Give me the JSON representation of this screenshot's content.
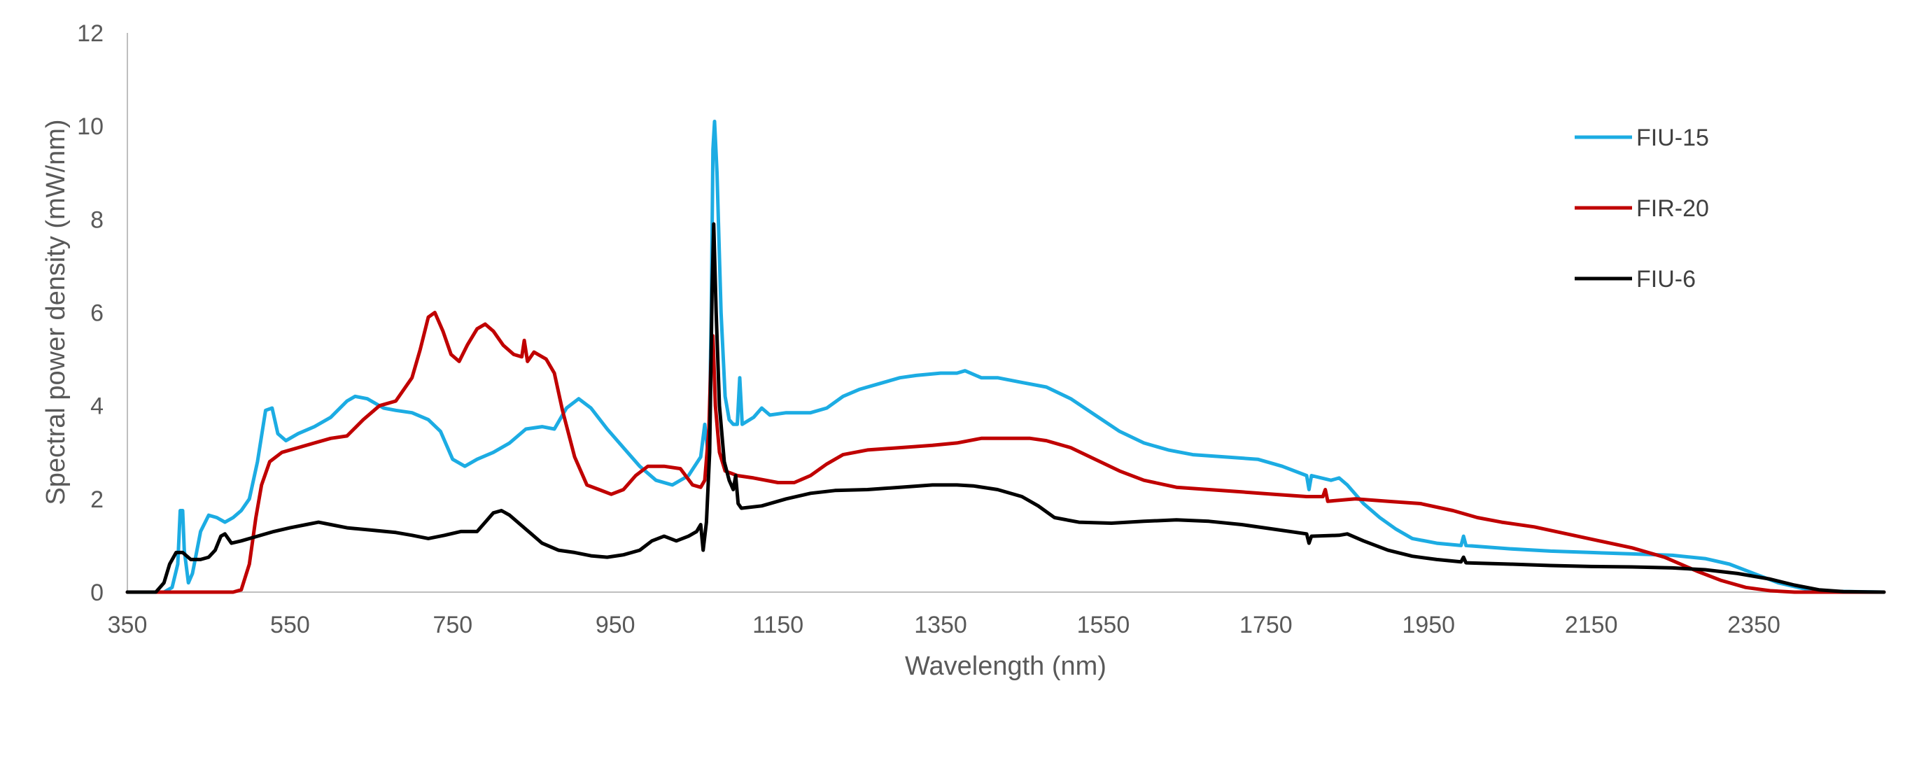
{
  "chart_data": {
    "type": "line",
    "title": "",
    "xlabel": "Wavelength (nm)",
    "ylabel": "Spectral power density (mW/nm)",
    "xlim": [
      350,
      2510
    ],
    "ylim": [
      0,
      12
    ],
    "xticks": [
      350,
      550,
      750,
      950,
      1150,
      1350,
      1550,
      1750,
      1950,
      2150,
      2350
    ],
    "yticks": [
      0,
      2,
      4,
      6,
      8,
      10,
      12
    ],
    "grid": false,
    "legend_position": "top-right",
    "series": [
      {
        "name": "FIU-15",
        "color": "#1CACE3",
        "points": [
          [
            350,
            0
          ],
          [
            395,
            0
          ],
          [
            405,
            0.1
          ],
          [
            412,
            0.6
          ],
          [
            415,
            1.75
          ],
          [
            418,
            1.75
          ],
          [
            420,
            0.9
          ],
          [
            425,
            0.2
          ],
          [
            430,
            0.4
          ],
          [
            440,
            1.3
          ],
          [
            450,
            1.65
          ],
          [
            460,
            1.6
          ],
          [
            470,
            1.5
          ],
          [
            480,
            1.6
          ],
          [
            490,
            1.75
          ],
          [
            500,
            2.0
          ],
          [
            510,
            2.8
          ],
          [
            520,
            3.9
          ],
          [
            528,
            3.95
          ],
          [
            535,
            3.4
          ],
          [
            545,
            3.25
          ],
          [
            560,
            3.4
          ],
          [
            580,
            3.55
          ],
          [
            600,
            3.75
          ],
          [
            620,
            4.1
          ],
          [
            630,
            4.2
          ],
          [
            645,
            4.15
          ],
          [
            665,
            3.95
          ],
          [
            680,
            3.9
          ],
          [
            700,
            3.85
          ],
          [
            720,
            3.7
          ],
          [
            735,
            3.45
          ],
          [
            750,
            2.85
          ],
          [
            765,
            2.7
          ],
          [
            780,
            2.85
          ],
          [
            800,
            3.0
          ],
          [
            820,
            3.2
          ],
          [
            840,
            3.5
          ],
          [
            860,
            3.55
          ],
          [
            875,
            3.5
          ],
          [
            890,
            3.95
          ],
          [
            905,
            4.15
          ],
          [
            920,
            3.95
          ],
          [
            940,
            3.5
          ],
          [
            960,
            3.1
          ],
          [
            980,
            2.7
          ],
          [
            1000,
            2.4
          ],
          [
            1020,
            2.3
          ],
          [
            1040,
            2.5
          ],
          [
            1055,
            2.9
          ],
          [
            1060,
            3.6
          ],
          [
            1065,
            2.8
          ],
          [
            1068,
            6.0
          ],
          [
            1070,
            9.5
          ],
          [
            1072,
            10.1
          ],
          [
            1075,
            9.0
          ],
          [
            1080,
            6.0
          ],
          [
            1085,
            4.2
          ],
          [
            1090,
            3.7
          ],
          [
            1095,
            3.6
          ],
          [
            1100,
            3.6
          ],
          [
            1103,
            4.6
          ],
          [
            1106,
            3.6
          ],
          [
            1120,
            3.75
          ],
          [
            1130,
            3.95
          ],
          [
            1140,
            3.8
          ],
          [
            1160,
            3.85
          ],
          [
            1190,
            3.85
          ],
          [
            1210,
            3.95
          ],
          [
            1230,
            4.2
          ],
          [
            1250,
            4.35
          ],
          [
            1270,
            4.45
          ],
          [
            1300,
            4.6
          ],
          [
            1320,
            4.65
          ],
          [
            1350,
            4.7
          ],
          [
            1370,
            4.7
          ],
          [
            1380,
            4.75
          ],
          [
            1400,
            4.6
          ],
          [
            1420,
            4.6
          ],
          [
            1450,
            4.5
          ],
          [
            1480,
            4.4
          ],
          [
            1510,
            4.15
          ],
          [
            1540,
            3.8
          ],
          [
            1570,
            3.45
          ],
          [
            1600,
            3.2
          ],
          [
            1630,
            3.05
          ],
          [
            1660,
            2.95
          ],
          [
            1700,
            2.9
          ],
          [
            1740,
            2.85
          ],
          [
            1770,
            2.7
          ],
          [
            1800,
            2.5
          ],
          [
            1803,
            2.2
          ],
          [
            1806,
            2.5
          ],
          [
            1830,
            2.4
          ],
          [
            1840,
            2.45
          ],
          [
            1850,
            2.3
          ],
          [
            1870,
            1.9
          ],
          [
            1890,
            1.6
          ],
          [
            1910,
            1.35
          ],
          [
            1930,
            1.15
          ],
          [
            1960,
            1.05
          ],
          [
            1990,
            1.0
          ],
          [
            1993,
            1.2
          ],
          [
            1996,
            1.0
          ],
          [
            2050,
            0.93
          ],
          [
            2100,
            0.88
          ],
          [
            2150,
            0.85
          ],
          [
            2200,
            0.82
          ],
          [
            2250,
            0.79
          ],
          [
            2290,
            0.72
          ],
          [
            2320,
            0.6
          ],
          [
            2350,
            0.4
          ],
          [
            2380,
            0.2
          ],
          [
            2410,
            0.08
          ],
          [
            2440,
            0.02
          ],
          [
            2510,
            0
          ]
        ]
      },
      {
        "name": "FIR-20",
        "color": "#C00000",
        "points": [
          [
            350,
            0
          ],
          [
            480,
            0
          ],
          [
            490,
            0.05
          ],
          [
            500,
            0.6
          ],
          [
            508,
            1.6
          ],
          [
            515,
            2.3
          ],
          [
            525,
            2.8
          ],
          [
            540,
            3.0
          ],
          [
            560,
            3.1
          ],
          [
            580,
            3.2
          ],
          [
            600,
            3.3
          ],
          [
            620,
            3.35
          ],
          [
            640,
            3.7
          ],
          [
            660,
            4.0
          ],
          [
            680,
            4.1
          ],
          [
            700,
            4.6
          ],
          [
            710,
            5.2
          ],
          [
            720,
            5.9
          ],
          [
            728,
            6.0
          ],
          [
            738,
            5.6
          ],
          [
            748,
            5.1
          ],
          [
            758,
            4.95
          ],
          [
            768,
            5.3
          ],
          [
            780,
            5.65
          ],
          [
            790,
            5.75
          ],
          [
            800,
            5.6
          ],
          [
            812,
            5.3
          ],
          [
            825,
            5.1
          ],
          [
            835,
            5.05
          ],
          [
            838,
            5.4
          ],
          [
            842,
            4.95
          ],
          [
            850,
            5.15
          ],
          [
            865,
            5.0
          ],
          [
            875,
            4.7
          ],
          [
            885,
            3.9
          ],
          [
            900,
            2.9
          ],
          [
            915,
            2.3
          ],
          [
            930,
            2.2
          ],
          [
            945,
            2.1
          ],
          [
            960,
            2.2
          ],
          [
            975,
            2.5
          ],
          [
            990,
            2.7
          ],
          [
            1010,
            2.7
          ],
          [
            1030,
            2.65
          ],
          [
            1045,
            2.3
          ],
          [
            1055,
            2.25
          ],
          [
            1060,
            2.4
          ],
          [
            1065,
            3.5
          ],
          [
            1068,
            5.2
          ],
          [
            1070,
            5.5
          ],
          [
            1073,
            4.0
          ],
          [
            1078,
            3.0
          ],
          [
            1085,
            2.6
          ],
          [
            1100,
            2.5
          ],
          [
            1120,
            2.45
          ],
          [
            1150,
            2.35
          ],
          [
            1170,
            2.35
          ],
          [
            1190,
            2.5
          ],
          [
            1210,
            2.75
          ],
          [
            1230,
            2.95
          ],
          [
            1260,
            3.05
          ],
          [
            1300,
            3.1
          ],
          [
            1340,
            3.15
          ],
          [
            1370,
            3.2
          ],
          [
            1400,
            3.3
          ],
          [
            1430,
            3.3
          ],
          [
            1460,
            3.3
          ],
          [
            1480,
            3.25
          ],
          [
            1510,
            3.1
          ],
          [
            1540,
            2.85
          ],
          [
            1570,
            2.6
          ],
          [
            1600,
            2.4
          ],
          [
            1640,
            2.25
          ],
          [
            1680,
            2.2
          ],
          [
            1720,
            2.15
          ],
          [
            1760,
            2.1
          ],
          [
            1800,
            2.05
          ],
          [
            1820,
            2.05
          ],
          [
            1823,
            2.2
          ],
          [
            1826,
            1.95
          ],
          [
            1860,
            2.0
          ],
          [
            1900,
            1.95
          ],
          [
            1940,
            1.9
          ],
          [
            1980,
            1.75
          ],
          [
            2010,
            1.6
          ],
          [
            2040,
            1.5
          ],
          [
            2080,
            1.4
          ],
          [
            2120,
            1.25
          ],
          [
            2160,
            1.1
          ],
          [
            2200,
            0.95
          ],
          [
            2240,
            0.75
          ],
          [
            2280,
            0.45
          ],
          [
            2310,
            0.25
          ],
          [
            2340,
            0.1
          ],
          [
            2370,
            0.03
          ],
          [
            2400,
            0
          ],
          [
            2510,
            0
          ]
        ]
      },
      {
        "name": "FIU-6",
        "color": "#000000",
        "points": [
          [
            350,
            0
          ],
          [
            385,
            0
          ],
          [
            395,
            0.2
          ],
          [
            402,
            0.6
          ],
          [
            410,
            0.85
          ],
          [
            418,
            0.85
          ],
          [
            428,
            0.7
          ],
          [
            440,
            0.7
          ],
          [
            450,
            0.75
          ],
          [
            458,
            0.9
          ],
          [
            465,
            1.2
          ],
          [
            470,
            1.25
          ],
          [
            478,
            1.05
          ],
          [
            490,
            1.1
          ],
          [
            510,
            1.2
          ],
          [
            530,
            1.3
          ],
          [
            550,
            1.38
          ],
          [
            570,
            1.45
          ],
          [
            585,
            1.5
          ],
          [
            600,
            1.45
          ],
          [
            620,
            1.38
          ],
          [
            650,
            1.33
          ],
          [
            680,
            1.28
          ],
          [
            700,
            1.22
          ],
          [
            720,
            1.15
          ],
          [
            740,
            1.22
          ],
          [
            760,
            1.3
          ],
          [
            780,
            1.3
          ],
          [
            790,
            1.5
          ],
          [
            800,
            1.7
          ],
          [
            810,
            1.75
          ],
          [
            820,
            1.65
          ],
          [
            840,
            1.35
          ],
          [
            860,
            1.05
          ],
          [
            880,
            0.9
          ],
          [
            900,
            0.85
          ],
          [
            920,
            0.78
          ],
          [
            940,
            0.75
          ],
          [
            960,
            0.8
          ],
          [
            980,
            0.9
          ],
          [
            995,
            1.1
          ],
          [
            1010,
            1.2
          ],
          [
            1025,
            1.1
          ],
          [
            1040,
            1.2
          ],
          [
            1050,
            1.3
          ],
          [
            1055,
            1.45
          ],
          [
            1058,
            0.9
          ],
          [
            1062,
            1.5
          ],
          [
            1066,
            3.0
          ],
          [
            1069,
            6.5
          ],
          [
            1071,
            7.9
          ],
          [
            1074,
            6.0
          ],
          [
            1078,
            4.0
          ],
          [
            1084,
            2.8
          ],
          [
            1090,
            2.4
          ],
          [
            1095,
            2.2
          ],
          [
            1098,
            2.5
          ],
          [
            1101,
            1.9
          ],
          [
            1105,
            1.8
          ],
          [
            1130,
            1.85
          ],
          [
            1160,
            2.0
          ],
          [
            1190,
            2.12
          ],
          [
            1220,
            2.18
          ],
          [
            1260,
            2.2
          ],
          [
            1300,
            2.25
          ],
          [
            1340,
            2.3
          ],
          [
            1370,
            2.3
          ],
          [
            1390,
            2.28
          ],
          [
            1420,
            2.2
          ],
          [
            1450,
            2.05
          ],
          [
            1470,
            1.85
          ],
          [
            1490,
            1.6
          ],
          [
            1520,
            1.5
          ],
          [
            1560,
            1.48
          ],
          [
            1600,
            1.52
          ],
          [
            1640,
            1.55
          ],
          [
            1680,
            1.52
          ],
          [
            1720,
            1.45
          ],
          [
            1760,
            1.35
          ],
          [
            1800,
            1.25
          ],
          [
            1803,
            1.05
          ],
          [
            1806,
            1.2
          ],
          [
            1840,
            1.22
          ],
          [
            1850,
            1.25
          ],
          [
            1870,
            1.1
          ],
          [
            1900,
            0.9
          ],
          [
            1930,
            0.77
          ],
          [
            1960,
            0.7
          ],
          [
            1990,
            0.65
          ],
          [
            1993,
            0.75
          ],
          [
            1996,
            0.63
          ],
          [
            2050,
            0.6
          ],
          [
            2100,
            0.57
          ],
          [
            2150,
            0.55
          ],
          [
            2200,
            0.54
          ],
          [
            2250,
            0.52
          ],
          [
            2290,
            0.48
          ],
          [
            2330,
            0.4
          ],
          [
            2370,
            0.28
          ],
          [
            2400,
            0.15
          ],
          [
            2430,
            0.05
          ],
          [
            2460,
            0.01
          ],
          [
            2510,
            0
          ]
        ]
      }
    ]
  }
}
